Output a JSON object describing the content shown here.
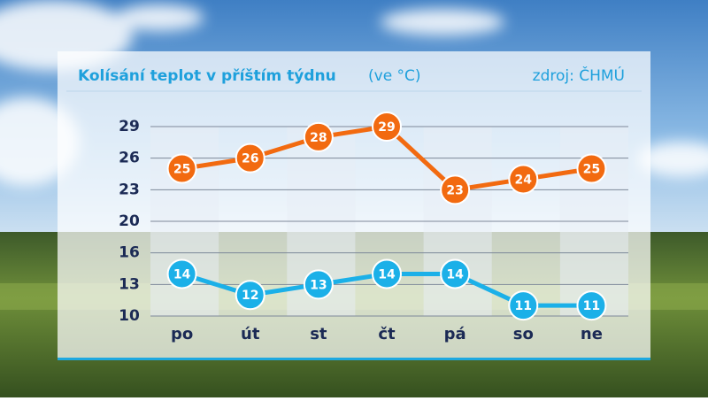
{
  "chart_data": {
    "type": "line",
    "title": "Kolísání teplot v příštím týdnu",
    "unit_note": "(ve °C)",
    "source": "zdroj: ČHMÚ",
    "categories": [
      "po",
      "út",
      "st",
      "čt",
      "pá",
      "so",
      "ne"
    ],
    "series": [
      {
        "color": "#f26a10",
        "values": [
          25,
          26,
          28,
          29,
          23,
          24,
          25
        ]
      },
      {
        "color": "#1bb0e8",
        "values": [
          14,
          12,
          13,
          14,
          14,
          11,
          11
        ]
      }
    ],
    "ylim": [
      10,
      29
    ],
    "yticks": [
      10,
      13,
      16,
      20,
      23,
      26,
      29
    ],
    "grid": true
  }
}
